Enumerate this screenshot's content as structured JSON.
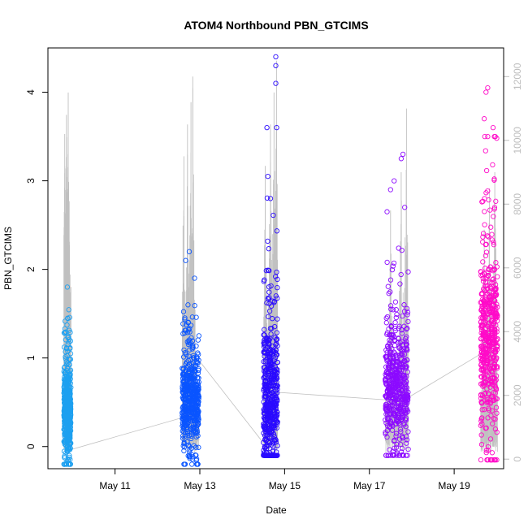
{
  "chart_data": {
    "type": "scatter",
    "title": "ATOM4 Northbound PBN_GTCIMS",
    "xlabel": "Date",
    "ylabel": "PBN_GTCIMS",
    "x_ticks": [
      "May 11",
      "May 13",
      "May 15",
      "May 17",
      "May 19"
    ],
    "y_ticks": [
      "0",
      "1",
      "2",
      "3",
      "4"
    ],
    "y2_ticks": [
      "0",
      "2000",
      "4000",
      "6000",
      "8000",
      "10000",
      "12000"
    ],
    "xlim": [
      "2023-05-09 10:00",
      "2023-05-20 04:00"
    ],
    "ylim": [
      -0.25,
      4.5
    ],
    "y2lim": [
      -300,
      12900
    ],
    "grid": false,
    "series": [
      {
        "color": "#1ea0f0",
        "x_range": [
          "2023-05-09 19:00",
          "2023-05-09 23:00"
        ],
        "y_min": -0.2,
        "y_max": 1.6,
        "y_median": 0.4,
        "outliers": [
          {
            "x": "2023-05-09 21:00",
            "y": 1.8
          }
        ]
      },
      {
        "color": "#0a55ff",
        "x_range": [
          "2023-05-12 14:00",
          "2023-05-12 23:30"
        ],
        "y_min": -0.2,
        "y_max": 1.6,
        "y_median": 0.55,
        "outliers": [
          {
            "x": "2023-05-12 16:00",
            "y": 2.1
          },
          {
            "x": "2023-05-12 18:00",
            "y": 2.2
          },
          {
            "x": "2023-05-12 21:00",
            "y": 1.9
          }
        ]
      },
      {
        "color": "#2a0aff",
        "x_range": [
          "2023-05-14 12:00",
          "2023-05-14 20:00"
        ],
        "y_min": -0.1,
        "y_max": 2.9,
        "y_median": 0.5,
        "outliers": [
          {
            "x": "2023-05-14 14:00",
            "y": 3.6
          },
          {
            "x": "2023-05-14 19:00",
            "y": 4.4
          },
          {
            "x": "2023-05-14 19:00",
            "y": 4.3
          },
          {
            "x": "2023-05-14 19:00",
            "y": 4.1
          },
          {
            "x": "2023-05-14 19:30",
            "y": 3.6
          },
          {
            "x": "2023-05-14 14:30",
            "y": 3.05
          },
          {
            "x": "2023-05-14 16:00",
            "y": 2.8
          }
        ]
      },
      {
        "color": "#8c0aff",
        "x_range": [
          "2023-05-17 09:00",
          "2023-05-17 22:00"
        ],
        "y_min": -0.1,
        "y_max": 2.4,
        "y_median": 0.7,
        "outliers": [
          {
            "x": "2023-05-17 12:00",
            "y": 2.9
          },
          {
            "x": "2023-05-17 14:00",
            "y": 3.0
          },
          {
            "x": "2023-05-17 18:00",
            "y": 3.25
          },
          {
            "x": "2023-05-17 19:00",
            "y": 3.3
          },
          {
            "x": "2023-05-17 20:00",
            "y": 2.7
          },
          {
            "x": "2023-05-17 10:00",
            "y": 2.65
          }
        ]
      },
      {
        "color": "#ff0ac8",
        "x_range": [
          "2023-05-19 15:00",
          "2023-05-20 00:30"
        ],
        "y_min": -0.15,
        "y_max": 3.5,
        "y_median": 1.2,
        "outliers": [
          {
            "x": "2023-05-19 18:00",
            "y": 4.0
          },
          {
            "x": "2023-05-19 19:00",
            "y": 4.05
          },
          {
            "x": "2023-05-19 17:00",
            "y": 3.7
          },
          {
            "x": "2023-05-19 22:00",
            "y": 3.6
          }
        ]
      }
    ],
    "secondary_line": {
      "color": "#c0c0c0",
      "axis": "right",
      "connector_points": [
        {
          "x": "2023-05-09 23:00",
          "y2": 300
        },
        {
          "x": "2023-05-12 14:00",
          "y2": 1300
        },
        {
          "x": "2023-05-12 23:30",
          "y2": 3100
        },
        {
          "x": "2023-05-14 13:30",
          "y2": 400
        },
        {
          "x": "2023-05-14 19:00",
          "y2": 2100
        },
        {
          "x": "2023-05-17 12:00",
          "y2": 1850
        },
        {
          "x": "2023-05-17 21:00",
          "y2": 1900
        },
        {
          "x": "2023-05-19 18:00",
          "y2": 3400
        }
      ],
      "spike_maxima": [
        {
          "x": "2023-05-09 19:30",
          "y2": 10200
        },
        {
          "x": "2023-05-09 20:30",
          "y2": 10800
        },
        {
          "x": "2023-05-09 21:30",
          "y2": 11500
        },
        {
          "x": "2023-05-09 23:00",
          "y2": 5400
        },
        {
          "x": "2023-05-12 15:00",
          "y2": 9500
        },
        {
          "x": "2023-05-12 17:00",
          "y2": 10500
        },
        {
          "x": "2023-05-12 19:00",
          "y2": 11200
        },
        {
          "x": "2023-05-12 20:00",
          "y2": 12000
        },
        {
          "x": "2023-05-14 13:00",
          "y2": 9200
        },
        {
          "x": "2023-05-14 16:00",
          "y2": 10500
        },
        {
          "x": "2023-05-14 18:00",
          "y2": 11500
        },
        {
          "x": "2023-05-14 19:30",
          "y2": 12500
        },
        {
          "x": "2023-05-17 12:00",
          "y2": 7800
        },
        {
          "x": "2023-05-17 18:00",
          "y2": 9000
        },
        {
          "x": "2023-05-17 21:00",
          "y2": 11000
        },
        {
          "x": "2023-05-19 17:00",
          "y2": 7200
        },
        {
          "x": "2023-05-19 20:00",
          "y2": 8500
        },
        {
          "x": "2023-05-19 23:00",
          "y2": 9000
        }
      ]
    }
  }
}
